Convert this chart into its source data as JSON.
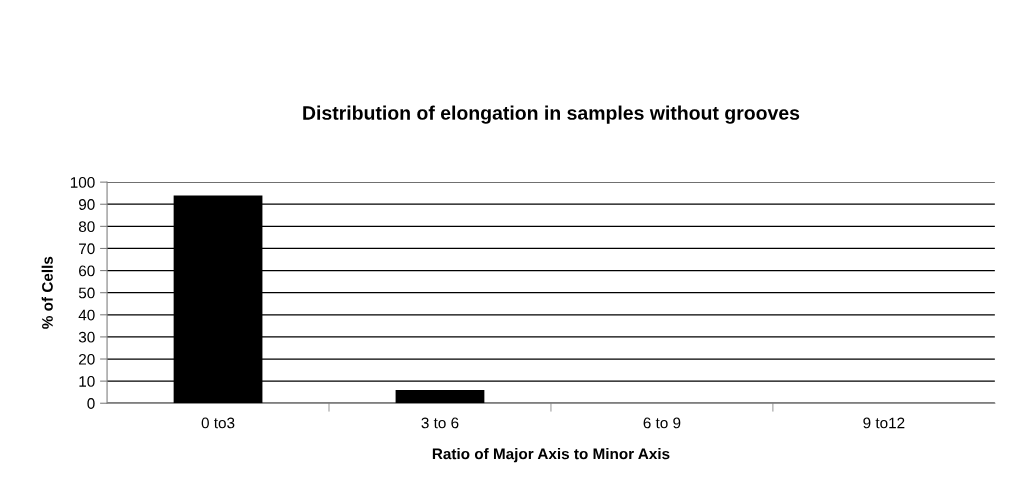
{
  "chart_data": {
    "type": "bar",
    "title": "Distribution of elongation in samples without grooves",
    "xlabel": "Ratio of Major Axis to Minor Axis",
    "ylabel": "% of Cells",
    "categories": [
      "0 to3",
      "3 to 6",
      "6 to 9",
      "9 to12"
    ],
    "series": [
      {
        "color": "#000000",
        "values": [
          94,
          6,
          0,
          0
        ]
      }
    ],
    "ylim": [
      0,
      100
    ],
    "yticks": [
      0,
      10,
      20,
      30,
      40,
      50,
      60,
      70,
      80,
      90,
      100
    ],
    "grid": "y",
    "legend": false
  }
}
